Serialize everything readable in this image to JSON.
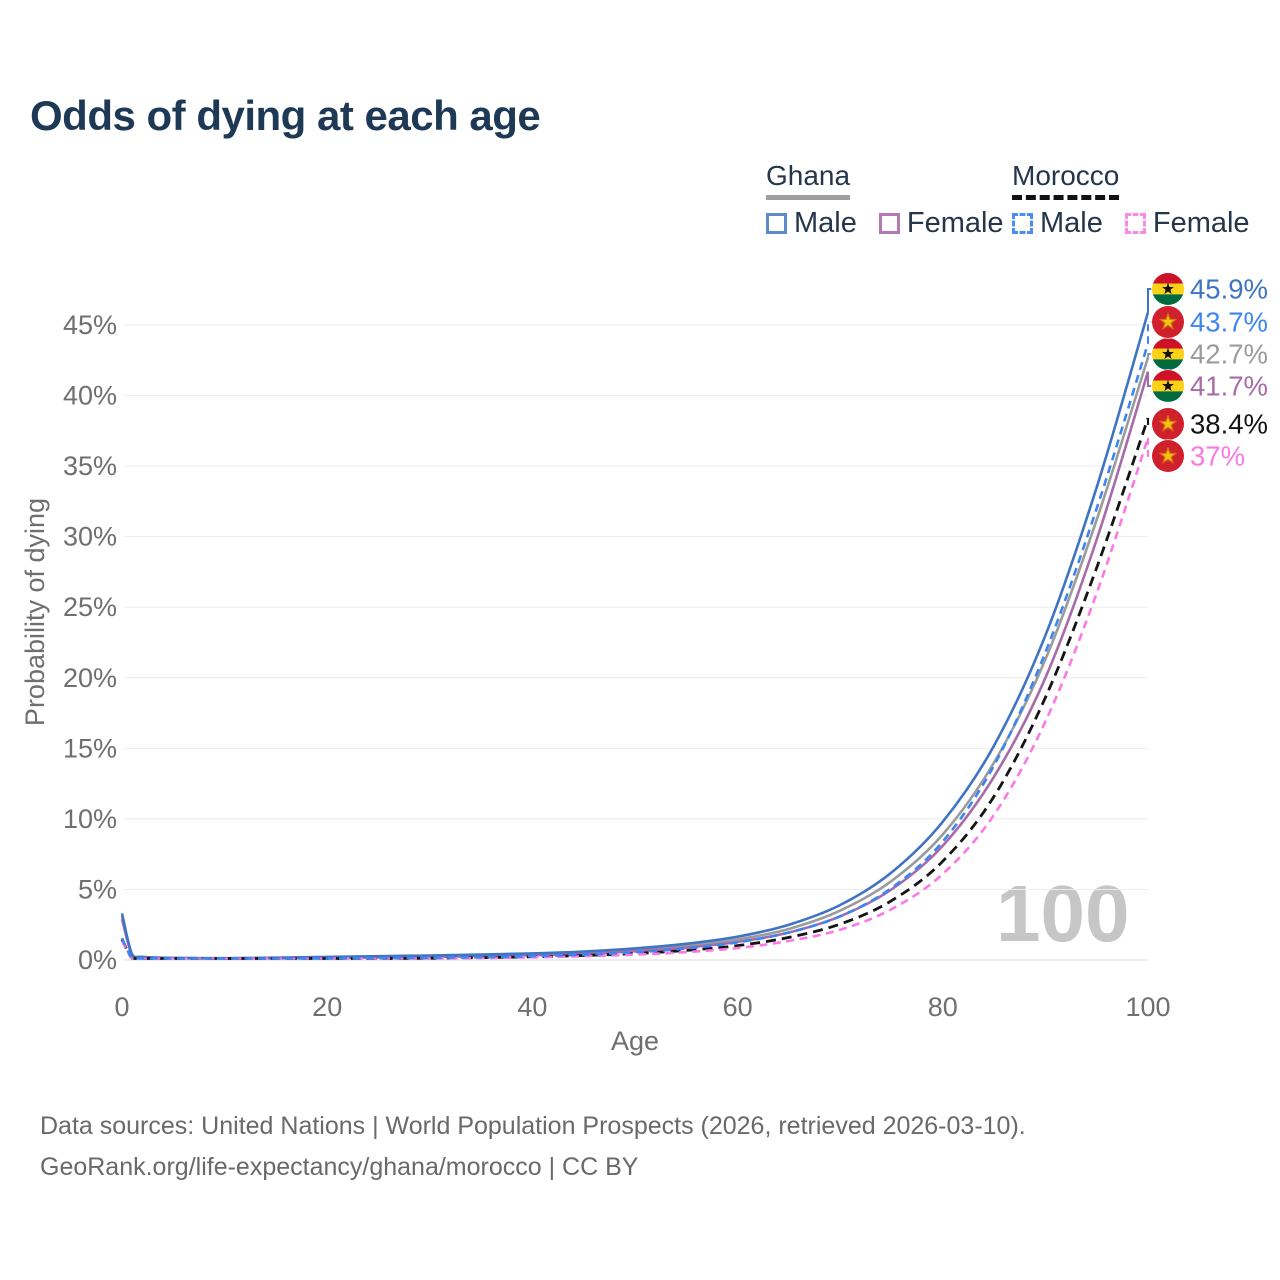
{
  "title": "Odds of dying at each age",
  "watermark": "100",
  "legend": {
    "groups": [
      {
        "name": "Ghana",
        "line_style": "solid",
        "swatch_color": "#9e9e9e",
        "items": [
          {
            "label": "Male",
            "color": "#5f8aca"
          },
          {
            "label": "Female",
            "color": "#b678b2"
          }
        ]
      },
      {
        "name": "Morocco",
        "line_style": "dashed",
        "swatch_color": "#121212",
        "items": [
          {
            "label": "Male",
            "color": "#4b8cf5"
          },
          {
            "label": "Female",
            "color": "#fb8ae6"
          }
        ]
      }
    ]
  },
  "chart_data": {
    "type": "line",
    "title": "Odds of dying at each age",
    "xlabel": "Age",
    "ylabel": "Probability of dying",
    "xlim": [
      0,
      100
    ],
    "ylim_pct": [
      0,
      47.5
    ],
    "grid": "horizontal",
    "legend_position": "top-right",
    "x_ticks": [
      {
        "value": 0,
        "label": "0"
      },
      {
        "value": 20,
        "label": "20"
      },
      {
        "value": 40,
        "label": "40"
      },
      {
        "value": 60,
        "label": "60"
      },
      {
        "value": 80,
        "label": "80"
      },
      {
        "value": 100,
        "label": "100"
      }
    ],
    "y_ticks": [
      {
        "value": 0,
        "label": "0%"
      },
      {
        "value": 5,
        "label": "5%"
      },
      {
        "value": 10,
        "label": "10%"
      },
      {
        "value": 15,
        "label": "15%"
      },
      {
        "value": 20,
        "label": "20%"
      },
      {
        "value": 25,
        "label": "25%"
      },
      {
        "value": 30,
        "label": "30%"
      },
      {
        "value": 35,
        "label": "35%"
      },
      {
        "value": 40,
        "label": "40%"
      },
      {
        "value": 45,
        "label": "45%"
      }
    ],
    "ages": [
      0,
      1,
      2,
      5,
      10,
      15,
      20,
      25,
      30,
      35,
      40,
      45,
      50,
      55,
      60,
      65,
      70,
      75,
      80,
      85,
      90,
      95,
      100
    ],
    "series": [
      {
        "name": "Ghana both sexes",
        "country": "Ghana",
        "flag": "ghana",
        "line_style": "solid",
        "color": "#9b9b9b",
        "end_label": "42.7%",
        "end_value": 42.7,
        "values": [
          3.1,
          0.33,
          0.2,
          0.14,
          0.12,
          0.14,
          0.19,
          0.23,
          0.28,
          0.33,
          0.41,
          0.53,
          0.72,
          1.0,
          1.45,
          2.2,
          3.5,
          5.6,
          8.9,
          14.0,
          21.3,
          31.2,
          42.7
        ]
      },
      {
        "name": "Ghana female",
        "country": "Ghana",
        "flag": "ghana",
        "line_style": "solid",
        "color": "#a66ba8",
        "end_label": "41.7%",
        "end_value": 41.7,
        "values": [
          2.9,
          0.3,
          0.19,
          0.13,
          0.11,
          0.12,
          0.15,
          0.18,
          0.22,
          0.27,
          0.34,
          0.45,
          0.62,
          0.88,
          1.28,
          1.95,
          3.1,
          5.0,
          8.1,
          13.0,
          20.0,
          29.8,
          41.7
        ]
      },
      {
        "name": "Ghana male",
        "country": "Ghana",
        "flag": "ghana",
        "line_style": "solid",
        "color": "#3f74c3",
        "end_label": "45.9%",
        "end_value": 45.9,
        "values": [
          3.3,
          0.35,
          0.22,
          0.15,
          0.13,
          0.16,
          0.22,
          0.27,
          0.32,
          0.38,
          0.47,
          0.6,
          0.82,
          1.15,
          1.65,
          2.5,
          3.9,
          6.2,
          9.8,
          15.2,
          23.0,
          33.5,
          45.9
        ]
      },
      {
        "name": "Morocco both sexes",
        "country": "Morocco",
        "flag": "morocco",
        "line_style": "dashed",
        "color": "#141414",
        "end_label": "38.4%",
        "end_value": 38.4,
        "values": [
          1.45,
          0.11,
          0.08,
          0.06,
          0.05,
          0.06,
          0.08,
          0.1,
          0.13,
          0.17,
          0.23,
          0.32,
          0.46,
          0.68,
          1.02,
          1.6,
          2.55,
          4.2,
          7.0,
          11.6,
          18.6,
          27.8,
          38.4
        ]
      },
      {
        "name": "Morocco female",
        "country": "Morocco",
        "flag": "morocco",
        "line_style": "dashed",
        "color": "#fb79e3",
        "end_label": "37%",
        "end_value": 37.0,
        "values": [
          1.35,
          0.1,
          0.07,
          0.05,
          0.04,
          0.05,
          0.07,
          0.09,
          0.11,
          0.14,
          0.19,
          0.27,
          0.38,
          0.56,
          0.85,
          1.35,
          2.15,
          3.6,
          6.1,
          10.3,
          16.9,
          26.0,
          37.0
        ]
      },
      {
        "name": "Morocco male",
        "country": "Morocco",
        "flag": "morocco",
        "line_style": "dashed",
        "color": "#3d85f2",
        "end_label": "43.7%",
        "end_value": 43.7,
        "values": [
          1.55,
          0.12,
          0.08,
          0.06,
          0.05,
          0.07,
          0.1,
          0.13,
          0.16,
          0.2,
          0.27,
          0.38,
          0.55,
          0.82,
          1.25,
          1.95,
          3.1,
          5.1,
          8.4,
          13.8,
          21.8,
          32.0,
          43.7
        ]
      }
    ]
  },
  "footer": {
    "line1": "Data sources: United Nations | World Population Prospects (2026, retrieved 2026-03-10).",
    "line2": "GeoRank.org/life-expectancy/ghana/morocco | CC BY"
  }
}
